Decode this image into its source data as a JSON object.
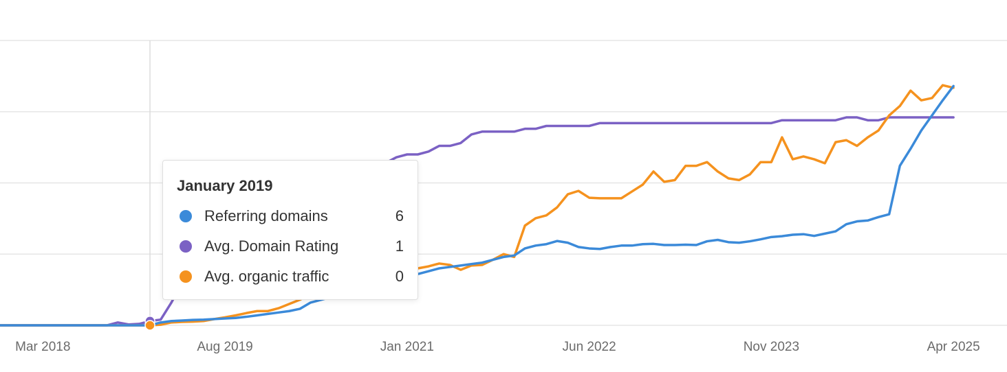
{
  "chart_data": {
    "type": "line",
    "x": [
      "2017-11",
      "2017-12",
      "2018-01",
      "2018-02",
      "2018-03",
      "2018-04",
      "2018-05",
      "2018-06",
      "2018-07",
      "2018-08",
      "2018-09",
      "2018-10",
      "2018-11",
      "2018-12",
      "2019-01",
      "2019-02",
      "2019-03",
      "2019-04",
      "2019-05",
      "2019-06",
      "2019-07",
      "2019-08",
      "2019-09",
      "2019-10",
      "2019-11",
      "2019-12",
      "2020-01",
      "2020-02",
      "2020-03",
      "2020-04",
      "2020-05",
      "2020-06",
      "2020-07",
      "2020-08",
      "2020-09",
      "2020-10",
      "2020-11",
      "2020-12",
      "2021-01",
      "2021-02",
      "2021-03",
      "2021-04",
      "2021-05",
      "2021-06",
      "2021-07",
      "2021-08",
      "2021-09",
      "2021-10",
      "2021-11",
      "2021-12",
      "2022-01",
      "2022-02",
      "2022-03",
      "2022-04",
      "2022-05",
      "2022-06",
      "2022-07",
      "2022-08",
      "2022-09",
      "2022-10",
      "2022-11",
      "2022-12",
      "2023-01",
      "2023-02",
      "2023-03",
      "2023-04",
      "2023-05",
      "2023-06",
      "2023-07",
      "2023-08",
      "2023-09",
      "2023-10",
      "2023-11",
      "2023-12",
      "2024-01",
      "2024-02",
      "2024-03",
      "2024-04",
      "2024-05",
      "2024-06",
      "2024-07",
      "2024-08",
      "2024-09",
      "2024-10",
      "2024-11",
      "2024-12",
      "2025-01",
      "2025-02",
      "2025-03",
      "2025-04"
    ],
    "xlim": [
      "2017-11",
      "2025-09"
    ],
    "xticks": [
      {
        "value": "2018-03",
        "label": "Mar 2018"
      },
      {
        "value": "2019-08",
        "label": "Aug 2019"
      },
      {
        "value": "2021-01",
        "label": "Jan 2021"
      },
      {
        "value": "2022-06",
        "label": "Jun 2022"
      },
      {
        "value": "2023-11",
        "label": "Nov 2023"
      },
      {
        "value": "2025-04",
        "label": "Apr 2025"
      }
    ],
    "ylim": [
      0,
      100
    ],
    "yticks": [
      0,
      25,
      50,
      75,
      100
    ],
    "grid": true,
    "series": [
      {
        "name": "Referring domains",
        "color": "#3b8ad9",
        "values": [
          0,
          0,
          0,
          0,
          0,
          0,
          0,
          0,
          0,
          0,
          0,
          0,
          0,
          0,
          0,
          1,
          1.5,
          1.7,
          1.9,
          2,
          2.2,
          2.4,
          2.6,
          3,
          3.5,
          4,
          4.5,
          5,
          5.8,
          8,
          9,
          10,
          11,
          12,
          13,
          14,
          15,
          16,
          17,
          18,
          19,
          20,
          20.5,
          21,
          21.5,
          22,
          23,
          24,
          24.5,
          27,
          28,
          28.5,
          29.6,
          29,
          27.5,
          27,
          26.8,
          27.5,
          28,
          28,
          28.5,
          28.6,
          28.2,
          28.2,
          28.3,
          28.2,
          29.5,
          30,
          29.2,
          29,
          29.5,
          30.2,
          31,
          31.3,
          31.8,
          32,
          31.4,
          32.2,
          33,
          35.5,
          36.5,
          36.8,
          38,
          39,
          56,
          62,
          68.4,
          73.7,
          79,
          84
        ]
      },
      {
        "name": "Avg. Domain Rating",
        "color": "#7b61c4",
        "values": [
          0,
          0,
          0,
          0,
          0,
          0,
          0,
          0,
          0,
          0,
          0,
          1,
          0.3,
          0.5,
          1.5,
          2,
          8,
          15,
          22,
          28,
          32,
          35,
          38,
          40,
          42,
          44,
          46,
          47,
          48,
          49,
          50,
          51,
          52,
          53,
          54,
          55,
          57,
          59,
          60,
          60,
          61,
          63,
          63,
          64,
          67,
          68,
          68,
          68,
          68,
          69,
          69,
          70,
          70,
          70,
          70,
          70,
          71,
          71,
          71,
          71,
          71,
          71,
          71,
          71,
          71,
          71,
          71,
          71,
          71,
          71,
          71,
          71,
          71,
          72,
          72,
          72,
          72,
          72,
          72,
          73,
          73,
          72,
          72,
          73,
          73,
          73,
          73,
          73,
          73,
          73
        ]
      },
      {
        "name": "Avg. organic traffic",
        "color": "#f5921e",
        "values": [
          0,
          0,
          0,
          0,
          0,
          0,
          0,
          0,
          0,
          0,
          0,
          0,
          0,
          0,
          0,
          0.2,
          1,
          1.2,
          1.3,
          1.5,
          2.2,
          2.8,
          3.5,
          4.3,
          5,
          5,
          6,
          7.5,
          9,
          11,
          12,
          13,
          14,
          15,
          16,
          17,
          18,
          19,
          19.5,
          20,
          20.7,
          21.7,
          21.2,
          19.5,
          21,
          21.2,
          23,
          25,
          24,
          35,
          37.6,
          38.6,
          41.4,
          46,
          47.2,
          44.8,
          44.6,
          44.6,
          44.6,
          47,
          49.4,
          54,
          50.4,
          51,
          56,
          56,
          57.3,
          54,
          51.6,
          51,
          53,
          57.3,
          57.3,
          66,
          58.3,
          59.3,
          58.3,
          56.9,
          64.3,
          65,
          63,
          66,
          68.4,
          73.7,
          77,
          82.4,
          79,
          79.8,
          84.3,
          83.4
        ]
      }
    ],
    "tooltip": {
      "x": "2019-01",
      "title": "January 2019",
      "values": [
        6,
        1,
        0
      ]
    }
  }
}
